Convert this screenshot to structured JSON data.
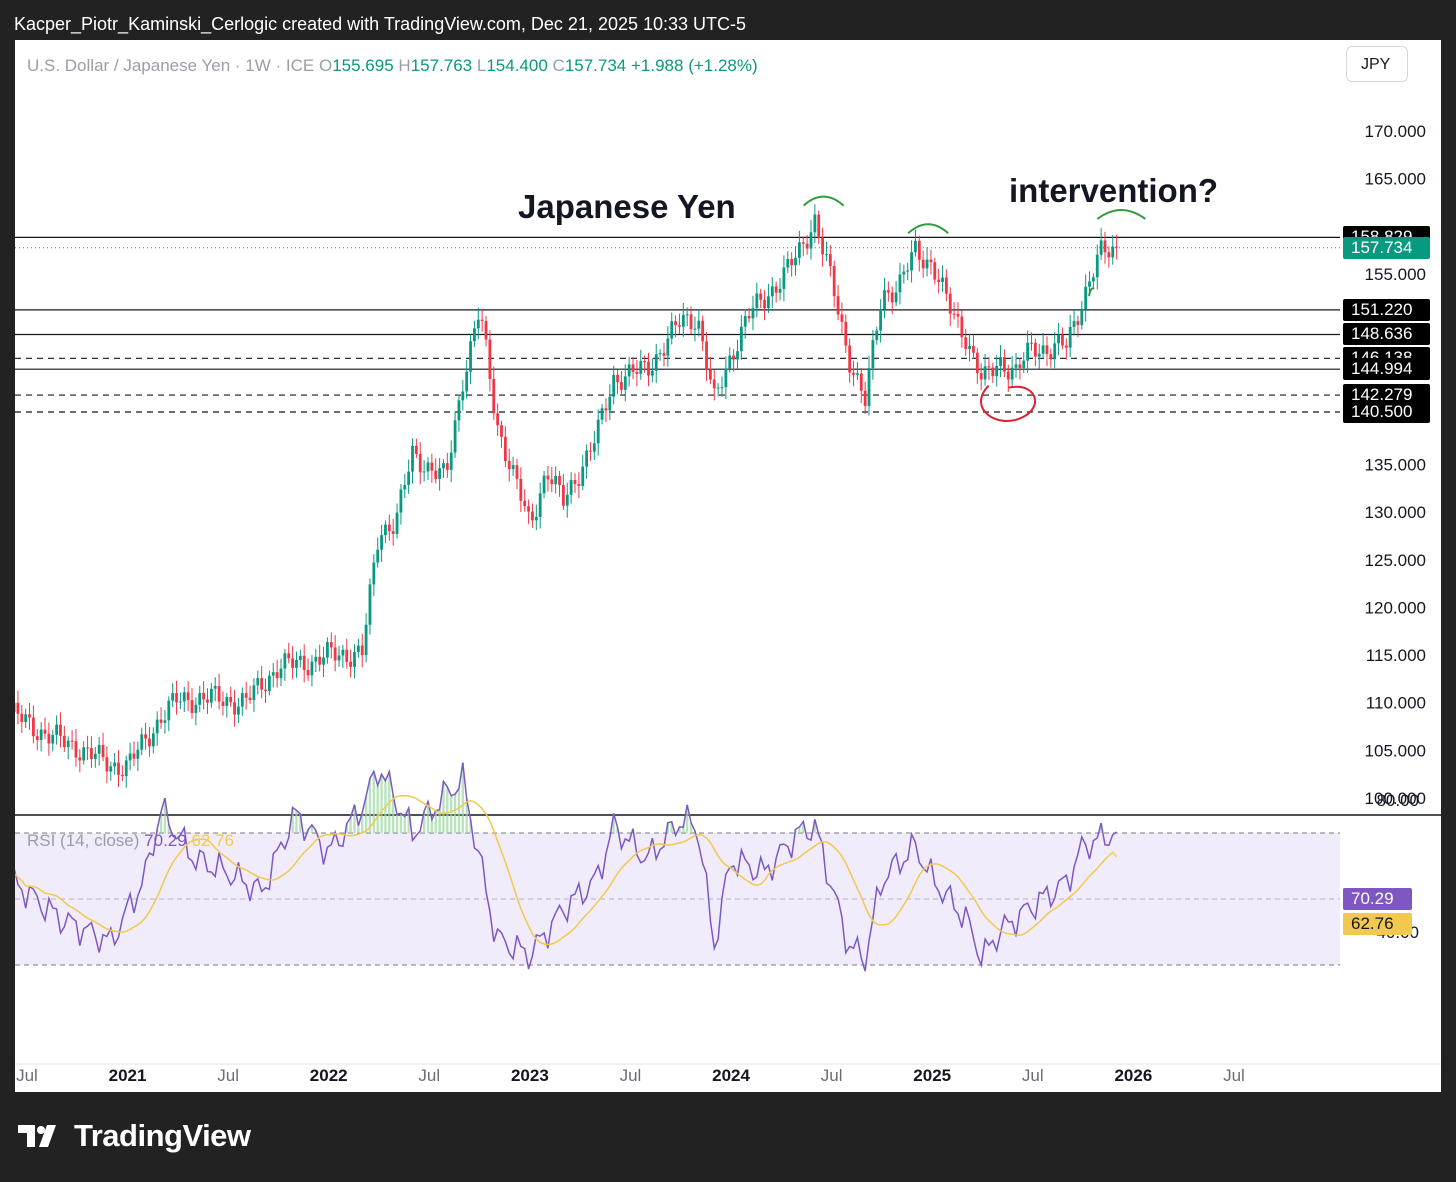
{
  "caption": "Kacper_Piotr_Kaminski_Cerlogic created with TradingView.com, Dec 21, 2025 10:33 UTC-5",
  "legend": {
    "symbol": "U.S. Dollar / Japanese Yen · 1W · ICE",
    "o_label": "O",
    "o": "155.695",
    "h_label": "H",
    "h": "157.763",
    "l_label": "L",
    "l": "154.400",
    "c_label": "C",
    "c": "157.734",
    "change": "+1.988 (+1.28%)"
  },
  "currency_button": "JPY",
  "annotations": {
    "title": "Japanese Yen",
    "question": "intervention?"
  },
  "price_axis_ticks": [
    "170.000",
    "165.000",
    "155.000",
    "135.000",
    "130.000",
    "125.000",
    "120.000",
    "115.000",
    "110.000",
    "105.000",
    "100.000"
  ],
  "level_labels": [
    "158.829",
    "157.734",
    "151.220",
    "148.636",
    "146.138",
    "144.994",
    "142.279",
    "140.500"
  ],
  "rsi": {
    "label": "RSI (14, close)",
    "value": "70.29",
    "ma": "62.76",
    "axis_ticks": [
      "80.00",
      "40.00"
    ]
  },
  "time_axis": [
    "Jul",
    "2021",
    "Jul",
    "2022",
    "Jul",
    "2023",
    "Jul",
    "2024",
    "Jul",
    "2025",
    "Jul",
    "2026",
    "Jul"
  ],
  "brand": "TradingView",
  "colors": {
    "up": "#089981",
    "down": "#f23645",
    "rsi": "#7e57c2",
    "rsi_ma": "#f2c94c",
    "rsi_band": "#f0ecfb"
  },
  "chart_data": {
    "type": "candlestick",
    "title": "U.S. Dollar / Japanese Yen · 1W · ICE",
    "interval": "1W",
    "ylim": [
      100,
      172
    ],
    "last_price": 157.734,
    "horizontal_levels": [
      {
        "value": 158.829,
        "style": "solid"
      },
      {
        "value": 151.22,
        "style": "solid"
      },
      {
        "value": 148.636,
        "style": "solid"
      },
      {
        "value": 146.138,
        "style": "dashed"
      },
      {
        "value": 144.994,
        "style": "solid"
      },
      {
        "value": 142.279,
        "style": "dashed"
      },
      {
        "value": 140.5,
        "style": "dashed"
      }
    ],
    "close_path": [
      [
        "2020-06",
        109.0
      ],
      [
        "2020-08",
        106.8
      ],
      [
        "2020-10",
        105.3
      ],
      [
        "2020-12",
        103.5
      ],
      [
        "2021-01",
        103.3
      ],
      [
        "2021-03",
        108.5
      ],
      [
        "2021-04",
        110.3
      ],
      [
        "2021-06",
        110.5
      ],
      [
        "2021-08",
        110.0
      ],
      [
        "2021-10",
        113.8
      ],
      [
        "2021-12",
        114.3
      ],
      [
        "2022-01",
        115.0
      ],
      [
        "2022-03",
        115.2
      ],
      [
        "2022-04",
        128.0
      ],
      [
        "2022-05",
        129.0
      ],
      [
        "2022-06",
        136.0
      ],
      [
        "2022-08",
        133.5
      ],
      [
        "2022-09",
        144.0
      ],
      [
        "2022-10",
        151.2
      ],
      [
        "2022-11",
        139.5
      ],
      [
        "2022-12",
        134.0
      ],
      [
        "2023-01",
        128.5
      ],
      [
        "2023-02",
        134.5
      ],
      [
        "2023-03",
        131.0
      ],
      [
        "2023-05",
        138.0
      ],
      [
        "2023-06",
        144.0
      ],
      [
        "2023-08",
        145.0
      ],
      [
        "2023-10",
        150.0
      ],
      [
        "2023-11",
        150.5
      ],
      [
        "2023-12",
        141.5
      ],
      [
        "2024-01",
        146.5
      ],
      [
        "2024-02",
        150.5
      ],
      [
        "2024-04",
        154.5
      ],
      [
        "2024-05",
        157.0
      ],
      [
        "2024-06",
        160.8
      ],
      [
        "2024-07",
        154.0
      ],
      [
        "2024-08",
        146.5
      ],
      [
        "2024-09",
        141.5
      ],
      [
        "2024-10",
        153.0
      ],
      [
        "2024-11",
        153.5
      ],
      [
        "2024-12",
        157.5
      ],
      [
        "2025-01",
        156.0
      ],
      [
        "2025-02",
        151.5
      ],
      [
        "2025-03",
        148.5
      ],
      [
        "2025-04",
        143.5
      ],
      [
        "2025-05",
        146.0
      ],
      [
        "2025-06",
        144.5
      ],
      [
        "2025-07",
        147.5
      ],
      [
        "2025-08",
        147.0
      ],
      [
        "2025-09",
        147.5
      ],
      [
        "2025-10",
        152.5
      ],
      [
        "2025-11",
        157.0
      ],
      [
        "2025-12",
        157.734
      ]
    ],
    "rsi": {
      "length": 14,
      "source": "close",
      "last": 70.29,
      "ma_last": 62.76,
      "upper_band": 70,
      "middle": 50,
      "lower_band": 30,
      "series": [
        [
          "2020-06",
          56
        ],
        [
          "2020-09",
          44
        ],
        [
          "2020-12",
          37
        ],
        [
          "2021-02",
          56
        ],
        [
          "2021-03",
          77
        ],
        [
          "2021-05",
          62
        ],
        [
          "2021-07",
          58
        ],
        [
          "2021-09",
          52
        ],
        [
          "2021-11",
          76
        ],
        [
          "2022-01",
          64
        ],
        [
          "2022-03",
          78
        ],
        [
          "2022-04",
          90
        ],
        [
          "2022-06",
          70
        ],
        [
          "2022-08",
          82
        ],
        [
          "2022-09",
          86
        ],
        [
          "2022-11",
          38
        ],
        [
          "2023-01",
          33
        ],
        [
          "2023-03",
          47
        ],
        [
          "2023-05",
          56
        ],
        [
          "2023-06",
          72
        ],
        [
          "2023-08",
          62
        ],
        [
          "2023-10",
          74
        ],
        [
          "2023-11",
          72
        ],
        [
          "2023-12",
          36
        ],
        [
          "2024-01",
          62
        ],
        [
          "2024-03",
          58
        ],
        [
          "2024-05",
          70
        ],
        [
          "2024-06",
          72
        ],
        [
          "2024-08",
          36
        ],
        [
          "2024-09",
          32
        ],
        [
          "2024-10",
          56
        ],
        [
          "2024-12",
          66
        ],
        [
          "2025-01",
          56
        ],
        [
          "2025-03",
          44
        ],
        [
          "2025-04",
          32
        ],
        [
          "2025-05",
          40
        ],
        [
          "2025-07",
          48
        ],
        [
          "2025-09",
          55
        ],
        [
          "2025-10",
          66
        ],
        [
          "2025-12",
          70.29
        ]
      ]
    }
  }
}
